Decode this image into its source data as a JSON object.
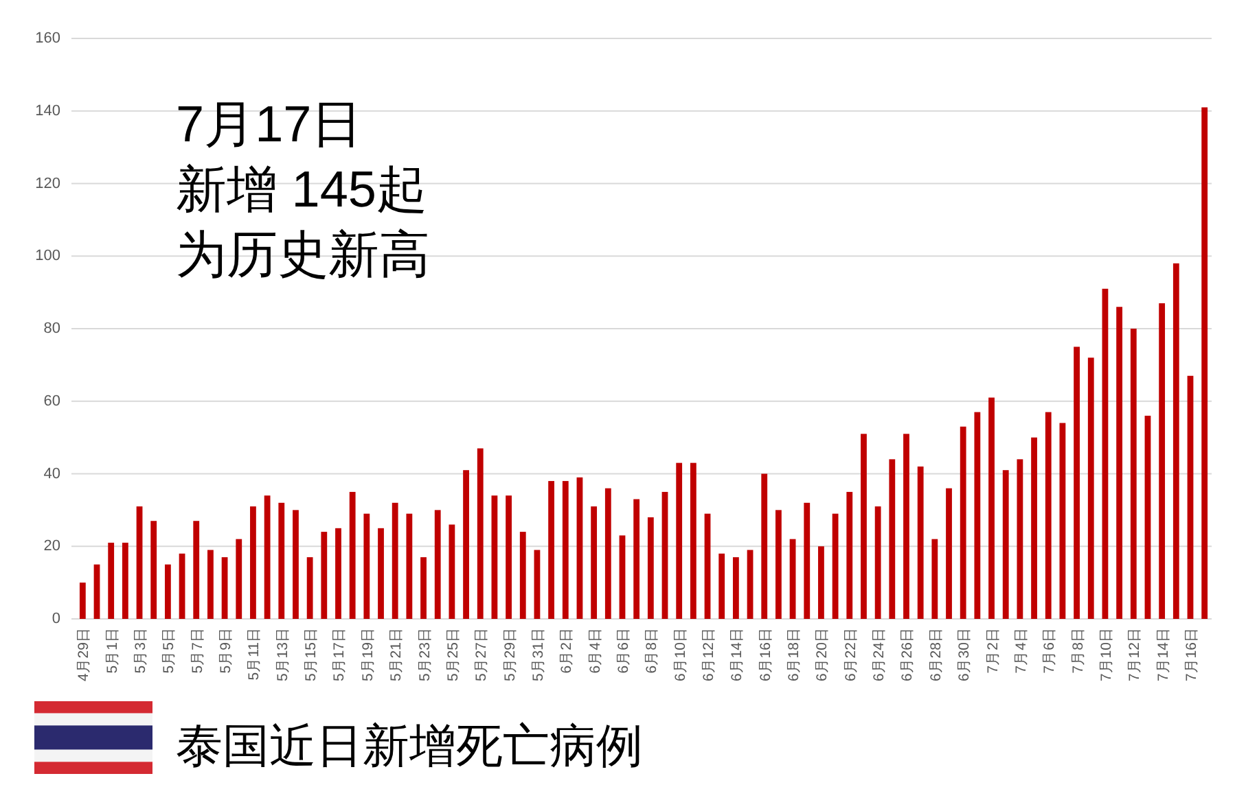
{
  "chart_data": {
    "type": "bar",
    "title": "泰国近日新增死亡病例",
    "annotations": [
      "7月17日",
      "新增 145起",
      "为历史新高"
    ],
    "categories": [
      "4月29日",
      null,
      "5月1日",
      null,
      "5月3日",
      null,
      "5月5日",
      null,
      "5月7日",
      null,
      "5月9日",
      null,
      "5月11日",
      null,
      "5月13日",
      null,
      "5月15日",
      null,
      "5月17日",
      null,
      "5月19日",
      null,
      "5月21日",
      null,
      "5月23日",
      null,
      "5月25日",
      null,
      "5月27日",
      null,
      "5月29日",
      null,
      "5月31日",
      null,
      "6月2日",
      null,
      "6月4日",
      null,
      "6月6日",
      null,
      "6月8日",
      null,
      "6月10日",
      null,
      "6月12日",
      null,
      "6月14日",
      null,
      "6月16日",
      null,
      "6月18日",
      null,
      "6月20日",
      null,
      "6月22日",
      null,
      "6月24日",
      null,
      "6月26日",
      null,
      "6月28日",
      null,
      "6月30日",
      null,
      "7月2日",
      null,
      "7月4日",
      null,
      "7月6日",
      null,
      "7月8日",
      null,
      "7月10日",
      null,
      "7月12日",
      null,
      "7月14日",
      null,
      "7月16日",
      null
    ],
    "values": [
      10,
      15,
      21,
      21,
      31,
      27,
      15,
      18,
      27,
      19,
      17,
      22,
      31,
      34,
      32,
      30,
      17,
      24,
      25,
      35,
      29,
      25,
      32,
      29,
      17,
      30,
      26,
      41,
      47,
      34,
      34,
      24,
      19,
      38,
      38,
      39,
      31,
      36,
      23,
      33,
      28,
      35,
      43,
      43,
      29,
      18,
      17,
      19,
      40,
      30,
      22,
      32,
      20,
      29,
      35,
      51,
      31,
      44,
      51,
      42,
      22,
      36,
      53,
      57,
      61,
      41,
      44,
      50,
      57,
      54,
      75,
      72,
      91,
      86,
      80,
      56,
      87,
      98,
      67,
      141
    ],
    "color": "#c00000",
    "ylim": [
      0,
      160
    ],
    "yticks": [
      0,
      20,
      40,
      60,
      80,
      100,
      120,
      140,
      160
    ],
    "grid": "y"
  }
}
